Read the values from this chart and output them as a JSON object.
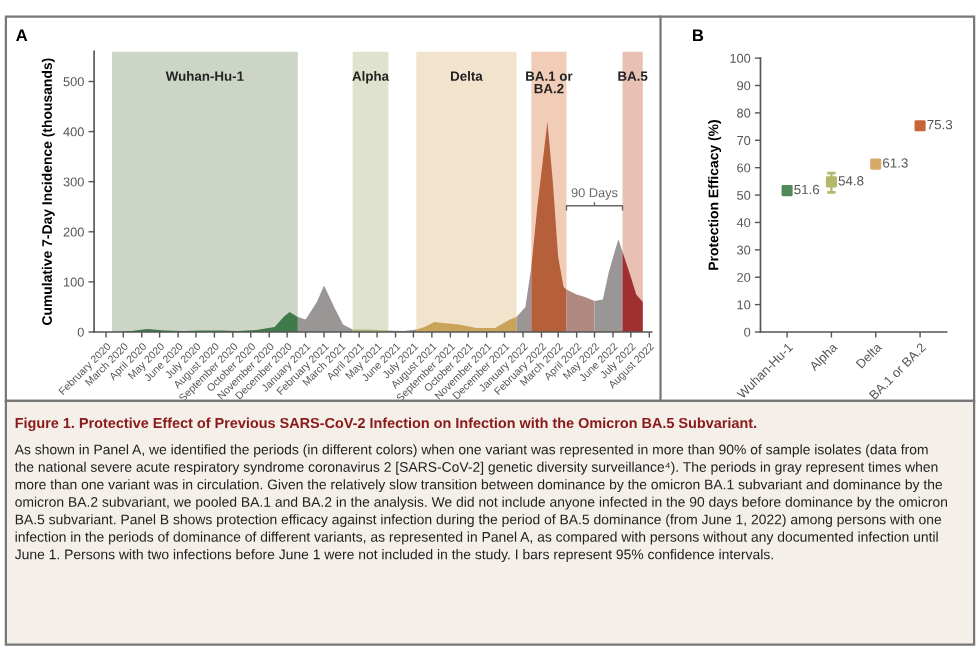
{
  "chart_data": [
    {
      "type": "area",
      "title": "A",
      "ylabel": "Cumulative 7-Day Incidence (thousands)",
      "xlim": [
        "2020-01-12",
        "2022-08-05"
      ],
      "ylim": [
        0,
        560
      ],
      "yticks": [
        0,
        100,
        200,
        300,
        400,
        500
      ],
      "xticks": [
        {
          "value": "2020-02",
          "label": "February 2020"
        },
        {
          "value": "2020-03",
          "label": "March 2020"
        },
        {
          "value": "2020-04",
          "label": "April 2020"
        },
        {
          "value": "2020-05",
          "label": "May 2020"
        },
        {
          "value": "2020-06",
          "label": "June 2020"
        },
        {
          "value": "2020-07",
          "label": "July 2020"
        },
        {
          "value": "2020-08",
          "label": "August 2020"
        },
        {
          "value": "2020-09",
          "label": "September 2020"
        },
        {
          "value": "2020-10",
          "label": "October 2020"
        },
        {
          "value": "2020-11",
          "label": "November 2020"
        },
        {
          "value": "2020-12",
          "label": "December 2020"
        },
        {
          "value": "2021-01",
          "label": "January 2021"
        },
        {
          "value": "2021-02",
          "label": "February 2021"
        },
        {
          "value": "2021-03",
          "label": "March 2021"
        },
        {
          "value": "2021-04",
          "label": "April 2021"
        },
        {
          "value": "2021-05",
          "label": "May 2021"
        },
        {
          "value": "2021-06",
          "label": "June 2021"
        },
        {
          "value": "2021-07",
          "label": "July 2021"
        },
        {
          "value": "2021-08",
          "label": "August 2021"
        },
        {
          "value": "2021-09",
          "label": "September 2021"
        },
        {
          "value": "2021-10",
          "label": "October 2021"
        },
        {
          "value": "2021-11",
          "label": "November 2021"
        },
        {
          "value": "2021-12",
          "label": "December 2021"
        },
        {
          "value": "2022-01",
          "label": "January 2022"
        },
        {
          "value": "2022-02",
          "label": "February 2022"
        },
        {
          "value": "2022-03",
          "label": "March 2022"
        },
        {
          "value": "2022-04",
          "label": "April 2022"
        },
        {
          "value": "2022-05",
          "label": "May 2022"
        },
        {
          "value": "2022-06",
          "label": "June 2022"
        },
        {
          "value": "2022-07",
          "label": "July 2022"
        },
        {
          "value": "2022-08",
          "label": "August 2022"
        }
      ],
      "series": [
        {
          "color": "#3f7a4a",
          "x": [
            "2020-02-10",
            "2020-03-15",
            "2020-04-10",
            "2020-05-10",
            "2020-06-10",
            "2020-07-10",
            "2020-08-10",
            "2020-09-10",
            "2020-10-10",
            "2020-11-10",
            "2020-11-25",
            "2020-12-05",
            "2020-12-19"
          ],
          "values": [
            0,
            2,
            6,
            3,
            2,
            3,
            3,
            2,
            4,
            10,
            30,
            40,
            30
          ]
        },
        {
          "color": "#9a9696",
          "x": [
            "2020-12-19",
            "2021-01-01",
            "2021-01-20",
            "2021-02-01",
            "2021-02-20",
            "2021-03-05",
            "2021-03-21"
          ],
          "values": [
            30,
            25,
            60,
            93,
            45,
            15,
            5
          ]
        },
        {
          "color": "#a9b57a",
          "x": [
            "2021-03-21",
            "2021-04-15",
            "2021-05-01",
            "2021-05-20"
          ],
          "values": [
            5,
            5,
            4,
            3
          ]
        },
        {
          "color": "#9a9696",
          "x": [
            "2021-05-20",
            "2021-06-15",
            "2021-07-06"
          ],
          "values": [
            3,
            2,
            5
          ]
        },
        {
          "color": "#c9a35a",
          "x": [
            "2021-07-06",
            "2021-07-20",
            "2021-08-05",
            "2021-08-20",
            "2021-09-15",
            "2021-10-15",
            "2021-11-15",
            "2021-12-10",
            "2021-12-21"
          ],
          "values": [
            5,
            10,
            20,
            18,
            15,
            8,
            8,
            25,
            30
          ]
        },
        {
          "color": "#9a9696",
          "x": [
            "2021-12-21",
            "2022-01-05",
            "2022-01-15"
          ],
          "values": [
            30,
            50,
            130
          ]
        },
        {
          "color": "#b5603a",
          "x": [
            "2022-01-15",
            "2022-01-25",
            "2022-02-11",
            "2022-02-20",
            "2022-03-01",
            "2022-03-10",
            "2022-03-15"
          ],
          "values": [
            130,
            250,
            420,
            300,
            150,
            90,
            85
          ]
        },
        {
          "color": "#b08a80",
          "x": [
            "2022-03-15",
            "2022-04-01",
            "2022-04-15",
            "2022-05-01"
          ],
          "values": [
            85,
            75,
            70,
            62
          ]
        },
        {
          "color": "#9a9696",
          "x": [
            "2022-05-01",
            "2022-05-15",
            "2022-05-25",
            "2022-06-10",
            "2022-06-17"
          ],
          "values": [
            62,
            65,
            120,
            185,
            160
          ]
        },
        {
          "color": "#a03030",
          "x": [
            "2022-06-17",
            "2022-07-01",
            "2022-07-10",
            "2022-07-21"
          ],
          "values": [
            160,
            110,
            75,
            60
          ]
        }
      ],
      "bands": [
        {
          "axis": "x",
          "from": "2020-02-11",
          "to": "2020-12-19",
          "label": "Wuhan-Hu-1",
          "color": "#cdd6c6"
        },
        {
          "axis": "x",
          "from": "2021-03-21",
          "to": "2021-05-20",
          "label": "Alpha",
          "color": "#dfe2cc"
        },
        {
          "axis": "x",
          "from": "2021-07-06",
          "to": "2021-12-21",
          "label": "Delta",
          "color": "#f2e3cc"
        },
        {
          "axis": "x",
          "from": "2022-01-15",
          "to": "2022-03-15",
          "label": "BA.1 or\nBA.2",
          "color": "#f1cdb8"
        },
        {
          "axis": "x",
          "from": "2022-06-17",
          "to": "2022-07-21",
          "label": "BA.5",
          "color": "#e8c0b4"
        }
      ],
      "annotations": [
        "90 Days",
        "Figure 1. Protective Effect of Previous SARS-CoV-2 Infection on Infection with the Omicron BA.5 Subvariant.",
        "As shown in Panel A, we identified the periods (in different colors) when one variant was represented in more than 90% of sample isolates (data from the national severe acute respiratory syndrome coronavirus 2 [SARS-CoV-2] genetic diversity surveillance⁴). The periods in gray represent times when more than one variant was in circulation. Given the relatively slow transition between dominance by the omicron BA.1 subvariant and dominance by the omicron BA.2 subvariant, we pooled BA.1 and BA.2 in the analysis. We did not include anyone infected in the 90 days before dominance by the omicron BA.5 subvariant. Panel B shows protection efficacy against infection during the period of BA.5 dominance (from June 1, 2022) among persons with one infection in the periods of dominance of different variants, as represented in Panel A, as compared with persons without any documented infection until June 1. Persons with two infections before June 1 were not included in the study. I bars represent 95% confidence intervals."
      ]
    },
    {
      "type": "scatter",
      "title": "B",
      "ylabel": "Protection Efficacy (%)",
      "categories": [
        "Wuhan-Hu-1",
        "Alpha",
        "Delta",
        "BA.1 or BA.2"
      ],
      "values": [
        51.6,
        54.8,
        61.3,
        75.3
      ],
      "errors": [
        [
          50.2,
          53
        ],
        [
          51,
          58
        ],
        [
          60,
          62.6
        ],
        [
          74.8,
          75.8
        ]
      ],
      "colors": [
        "#4f8a5a",
        "#b4b86a",
        "#d8aa6a",
        "#c8643a"
      ],
      "marker": "square",
      "data_labels": true,
      "ylim": [
        0,
        100
      ],
      "yticks": [
        0,
        10,
        20,
        30,
        40,
        50,
        60,
        70,
        80,
        90,
        100
      ]
    }
  ]
}
